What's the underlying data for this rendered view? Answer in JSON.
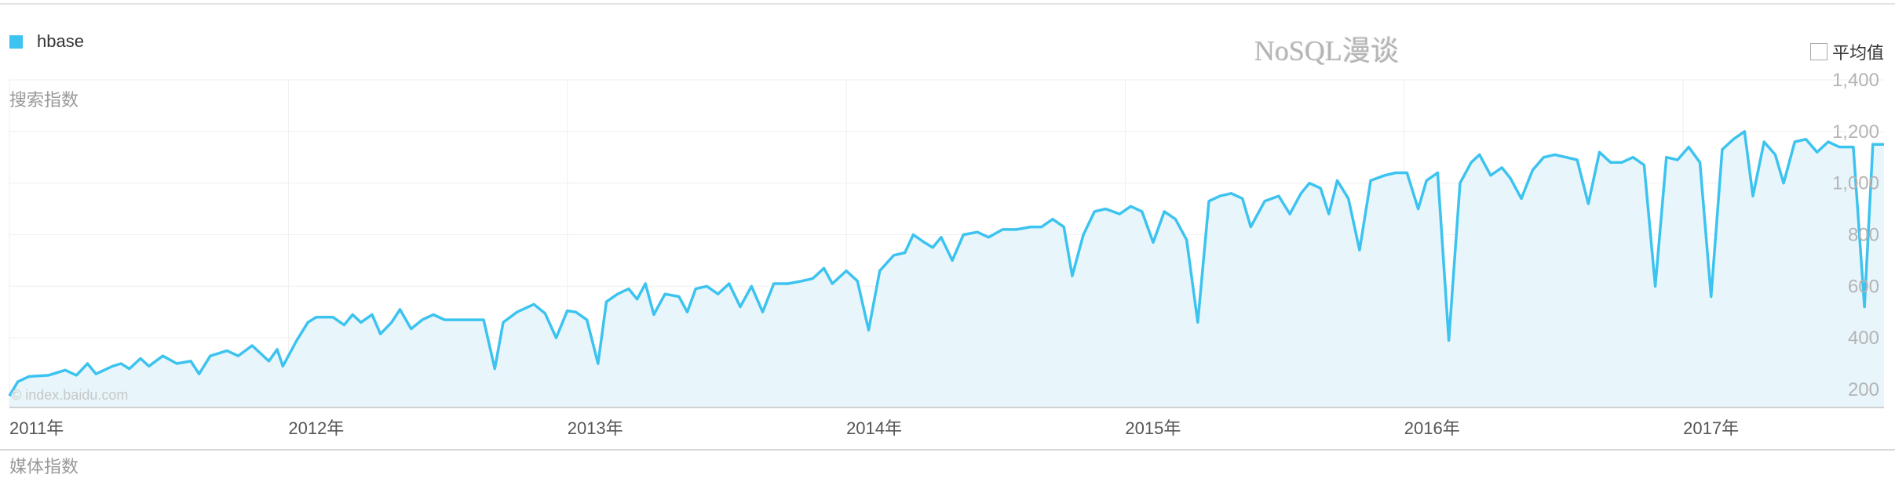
{
  "watermark": "NoSQL漫谈",
  "legend": {
    "label": "hbase",
    "color": "#3cc3ef"
  },
  "avg_toggle": {
    "label": "平均值",
    "checked": false
  },
  "metric_label": "搜索指数",
  "cutoff_label": "媒体指数",
  "source": "© index.baidu.com",
  "colors": {
    "line": "#3cc3ef",
    "fill": "#e8f6fc",
    "grid": "#efefef",
    "axis": "#d0d0d0"
  },
  "chart_data": {
    "type": "area",
    "title": "",
    "series": [
      {
        "name": "hbase"
      }
    ],
    "xlabel": "",
    "ylabel": "搜索指数",
    "xlim": [
      2011.0,
      2017.72
    ],
    "ylim": [
      130,
      1400
    ],
    "yticks": [
      "1,400",
      "1,200",
      "1,000",
      "800",
      "600",
      "400",
      "200"
    ],
    "ytick_values": [
      1400,
      1200,
      1000,
      800,
      600,
      400,
      200
    ],
    "xticks": [
      "2011年",
      "2012年",
      "2013年",
      "2014年",
      "2015年",
      "2016年",
      "2017年"
    ],
    "xtick_values": [
      2011,
      2012,
      2013,
      2014,
      2015,
      2016,
      2017
    ],
    "grid": true,
    "legend_position": "top-left",
    "points": [
      [
        2011.0,
        175
      ],
      [
        2011.03,
        230
      ],
      [
        2011.07,
        250
      ],
      [
        2011.14,
        255
      ],
      [
        2011.2,
        275
      ],
      [
        2011.24,
        255
      ],
      [
        2011.28,
        300
      ],
      [
        2011.31,
        260
      ],
      [
        2011.37,
        290
      ],
      [
        2011.4,
        300
      ],
      [
        2011.43,
        280
      ],
      [
        2011.47,
        320
      ],
      [
        2011.5,
        290
      ],
      [
        2011.55,
        330
      ],
      [
        2011.6,
        300
      ],
      [
        2011.65,
        310
      ],
      [
        2011.68,
        260
      ],
      [
        2011.72,
        330
      ],
      [
        2011.78,
        350
      ],
      [
        2011.82,
        330
      ],
      [
        2011.87,
        370
      ],
      [
        2011.9,
        340
      ],
      [
        2011.93,
        310
      ],
      [
        2011.96,
        355
      ],
      [
        2011.98,
        290
      ],
      [
        2012.03,
        390
      ],
      [
        2012.07,
        460
      ],
      [
        2012.1,
        480
      ],
      [
        2012.16,
        480
      ],
      [
        2012.2,
        450
      ],
      [
        2012.23,
        490
      ],
      [
        2012.26,
        460
      ],
      [
        2012.3,
        490
      ],
      [
        2012.33,
        415
      ],
      [
        2012.37,
        460
      ],
      [
        2012.4,
        510
      ],
      [
        2012.44,
        435
      ],
      [
        2012.48,
        470
      ],
      [
        2012.52,
        490
      ],
      [
        2012.56,
        470
      ],
      [
        2012.65,
        470
      ],
      [
        2012.7,
        470
      ],
      [
        2012.74,
        280
      ],
      [
        2012.77,
        460
      ],
      [
        2012.82,
        500
      ],
      [
        2012.88,
        530
      ],
      [
        2012.92,
        495
      ],
      [
        2012.96,
        400
      ],
      [
        2013.0,
        505
      ],
      [
        2013.03,
        500
      ],
      [
        2013.07,
        470
      ],
      [
        2013.11,
        300
      ],
      [
        2013.14,
        540
      ],
      [
        2013.18,
        570
      ],
      [
        2013.22,
        590
      ],
      [
        2013.25,
        550
      ],
      [
        2013.28,
        610
      ],
      [
        2013.31,
        490
      ],
      [
        2013.35,
        570
      ],
      [
        2013.4,
        560
      ],
      [
        2013.43,
        500
      ],
      [
        2013.46,
        590
      ],
      [
        2013.5,
        600
      ],
      [
        2013.54,
        570
      ],
      [
        2013.58,
        610
      ],
      [
        2013.62,
        520
      ],
      [
        2013.66,
        600
      ],
      [
        2013.7,
        500
      ],
      [
        2013.74,
        610
      ],
      [
        2013.79,
        610
      ],
      [
        2013.84,
        620
      ],
      [
        2013.88,
        630
      ],
      [
        2013.92,
        670
      ],
      [
        2013.95,
        610
      ],
      [
        2014.0,
        660
      ],
      [
        2014.04,
        620
      ],
      [
        2014.08,
        430
      ],
      [
        2014.12,
        660
      ],
      [
        2014.17,
        720
      ],
      [
        2014.21,
        730
      ],
      [
        2014.24,
        800
      ],
      [
        2014.28,
        770
      ],
      [
        2014.31,
        750
      ],
      [
        2014.34,
        790
      ],
      [
        2014.38,
        700
      ],
      [
        2014.42,
        800
      ],
      [
        2014.47,
        810
      ],
      [
        2014.51,
        790
      ],
      [
        2014.56,
        820
      ],
      [
        2014.61,
        820
      ],
      [
        2014.66,
        830
      ],
      [
        2014.7,
        830
      ],
      [
        2014.74,
        860
      ],
      [
        2014.78,
        830
      ],
      [
        2014.81,
        640
      ],
      [
        2014.85,
        800
      ],
      [
        2014.89,
        890
      ],
      [
        2014.93,
        900
      ],
      [
        2014.98,
        880
      ],
      [
        2015.02,
        910
      ],
      [
        2015.06,
        890
      ],
      [
        2015.1,
        770
      ],
      [
        2015.14,
        890
      ],
      [
        2015.18,
        860
      ],
      [
        2015.22,
        780
      ],
      [
        2015.26,
        460
      ],
      [
        2015.3,
        930
      ],
      [
        2015.34,
        950
      ],
      [
        2015.38,
        960
      ],
      [
        2015.42,
        940
      ],
      [
        2015.45,
        830
      ],
      [
        2015.5,
        930
      ],
      [
        2015.55,
        950
      ],
      [
        2015.59,
        880
      ],
      [
        2015.63,
        960
      ],
      [
        2015.66,
        1000
      ],
      [
        2015.7,
        980
      ],
      [
        2015.73,
        880
      ],
      [
        2015.76,
        1010
      ],
      [
        2015.8,
        940
      ],
      [
        2015.84,
        740
      ],
      [
        2015.88,
        1010
      ],
      [
        2015.93,
        1030
      ],
      [
        2015.97,
        1040
      ],
      [
        2016.01,
        1040
      ],
      [
        2016.05,
        900
      ],
      [
        2016.08,
        1010
      ],
      [
        2016.12,
        1040
      ],
      [
        2016.16,
        390
      ],
      [
        2016.2,
        1000
      ],
      [
        2016.24,
        1080
      ],
      [
        2016.27,
        1110
      ],
      [
        2016.31,
        1030
      ],
      [
        2016.35,
        1060
      ],
      [
        2016.38,
        1020
      ],
      [
        2016.42,
        940
      ],
      [
        2016.46,
        1050
      ],
      [
        2016.5,
        1100
      ],
      [
        2016.54,
        1110
      ],
      [
        2016.58,
        1100
      ],
      [
        2016.62,
        1090
      ],
      [
        2016.66,
        920
      ],
      [
        2016.7,
        1120
      ],
      [
        2016.74,
        1080
      ],
      [
        2016.78,
        1080
      ],
      [
        2016.82,
        1100
      ],
      [
        2016.86,
        1070
      ],
      [
        2016.9,
        600
      ],
      [
        2016.94,
        1100
      ],
      [
        2016.98,
        1090
      ],
      [
        2017.02,
        1140
      ],
      [
        2017.06,
        1080
      ],
      [
        2017.1,
        560
      ],
      [
        2017.14,
        1130
      ],
      [
        2017.18,
        1170
      ],
      [
        2017.22,
        1200
      ],
      [
        2017.25,
        950
      ],
      [
        2017.29,
        1160
      ],
      [
        2017.33,
        1110
      ],
      [
        2017.36,
        1000
      ],
      [
        2017.4,
        1160
      ],
      [
        2017.44,
        1170
      ],
      [
        2017.48,
        1120
      ],
      [
        2017.52,
        1160
      ],
      [
        2017.56,
        1140
      ],
      [
        2017.61,
        1140
      ],
      [
        2017.65,
        520
      ],
      [
        2017.68,
        1150
      ],
      [
        2017.72,
        1150
      ]
    ]
  }
}
